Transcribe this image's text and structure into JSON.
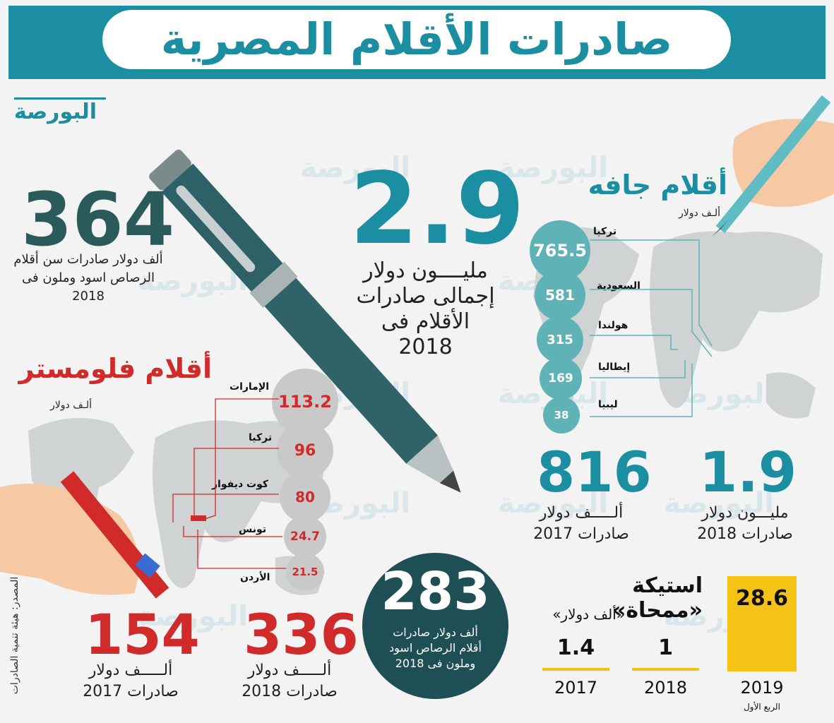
{
  "header": {
    "title": "صادرات الأقلام المصرية",
    "logo": "البورصة"
  },
  "watermark": "البورصة",
  "left_stat": {
    "value": "364",
    "caption": "ألف دولار صادرات  سن أقلام الرصاص اسود وملون فى 2018"
  },
  "center_stat": {
    "value": "2.9",
    "caption_line1": "مليــــون دولار",
    "caption_line2": "إجمالى صادرات",
    "caption_line3": "الأقلام فى",
    "caption_line4": "2018"
  },
  "dry_pens": {
    "title": "أقلام جافه",
    "unit": "ألـف دولار",
    "countries": [
      {
        "name": "تركيا",
        "value": "765.5"
      },
      {
        "name": "السعودية",
        "value": "581"
      },
      {
        "name": "هولندا",
        "value": "315"
      },
      {
        "name": "إيطاليا",
        "value": "169"
      },
      {
        "name": "ليبيا",
        "value": "38"
      }
    ],
    "stat_2017": {
      "value": "816",
      "line1": "ألـــــف دولار",
      "line2": "صادرات 2017"
    },
    "stat_2018": {
      "value": "1.9",
      "line1": "مليـــون دولار",
      "line2": "صادرات 2018"
    }
  },
  "felt_pens": {
    "title": "أقلام فلومستر",
    "unit": "ألـف دولار",
    "countries": [
      {
        "name": "الإمارات",
        "value": "113.2"
      },
      {
        "name": "تركيا",
        "value": "96"
      },
      {
        "name": "كوت ديفوار",
        "value": "80"
      },
      {
        "name": "تونس",
        "value": "24.7"
      },
      {
        "name": "الأردن",
        "value": "21.5"
      }
    ],
    "stat_2017": {
      "value": "154",
      "line1": "ألـــــف دولار",
      "line2": "صادرات 2017"
    },
    "stat_2018": {
      "value": "336",
      "line1": "ألـــــف دولار",
      "line2": "صادرات 2018"
    }
  },
  "pencil_stat": {
    "value": "283",
    "line1": "ألف دولار صادرات",
    "line2": "أقلام الرصاص اسود",
    "line3": "وملون فى 2018"
  },
  "eraser": {
    "title": "استيكة «ممحاة»",
    "unit": "«ألف دولار»",
    "bars": [
      {
        "year": "2019",
        "sub": "الربع الأول",
        "value": "28.6"
      },
      {
        "year": "2018",
        "value": "1"
      },
      {
        "year": "2017",
        "value": "1.4"
      }
    ]
  },
  "source": "المصدر: هيئة تنمية الصادرات",
  "colors": {
    "teal": "#1b8fa1",
    "red": "#d12a2a",
    "yellow": "#f5c316",
    "dark": "#1d4f55"
  }
}
